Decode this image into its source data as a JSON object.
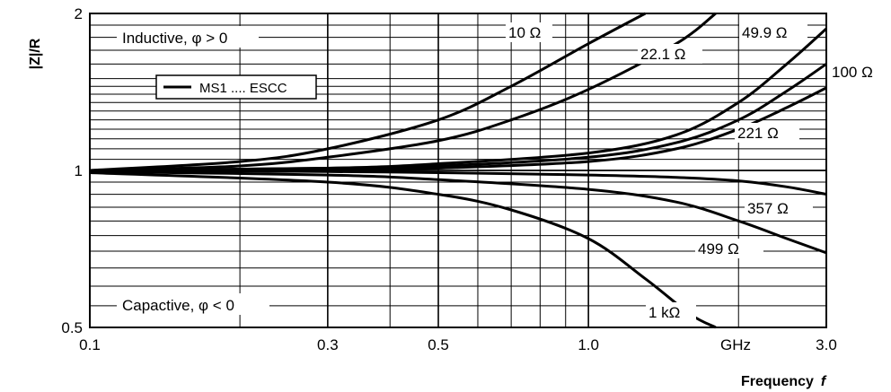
{
  "chart_data": {
    "type": "line",
    "x_scale": "log",
    "y_scale": "log",
    "xlim": [
      0.1,
      3.0
    ],
    "ylim": [
      0.5,
      2
    ],
    "xlabel": "Frequency",
    "xlabel_var": "f",
    "ylabel": "|Z|/R",
    "x_ticks": [
      {
        "value": 0.1,
        "label": "0.1"
      },
      {
        "value": 0.3,
        "label": "0.3"
      },
      {
        "value": 0.5,
        "label": "0.5"
      },
      {
        "value": 1.0,
        "label": "1.0"
      },
      {
        "value": 3.0,
        "label": "3.0"
      }
    ],
    "x_unit_label": "GHz",
    "y_ticks": [
      {
        "value": 0.5,
        "label": "0.5"
      },
      {
        "value": 1,
        "label": "1"
      },
      {
        "value": 2,
        "label": "2"
      }
    ],
    "grid": true,
    "legend": {
      "placement": "upper-left",
      "entries": [
        "MS1 .... ESCC"
      ]
    },
    "annotations": [
      "Inductive, φ > 0",
      "Capactive, φ < 0"
    ],
    "series": [
      {
        "name": "10 Ω",
        "points": [
          [
            0.1,
            1.0
          ],
          [
            0.2,
            1.04
          ],
          [
            0.3,
            1.1
          ],
          [
            0.5,
            1.25
          ],
          [
            0.7,
            1.45
          ],
          [
            1.0,
            1.75
          ],
          [
            1.3,
            2.0
          ]
        ]
      },
      {
        "name": "22.1 Ω",
        "points": [
          [
            0.1,
            1.0
          ],
          [
            0.2,
            1.02
          ],
          [
            0.3,
            1.06
          ],
          [
            0.5,
            1.14
          ],
          [
            0.7,
            1.25
          ],
          [
            1.0,
            1.43
          ],
          [
            1.5,
            1.75
          ],
          [
            1.8,
            2.0
          ]
        ]
      },
      {
        "name": "49.9 Ω",
        "points": [
          [
            0.1,
            1.0
          ],
          [
            0.3,
            1.01
          ],
          [
            0.5,
            1.03
          ],
          [
            1.0,
            1.08
          ],
          [
            1.5,
            1.17
          ],
          [
            2.0,
            1.35
          ],
          [
            2.5,
            1.6
          ],
          [
            3.0,
            1.87
          ]
        ]
      },
      {
        "name": "100 Ω",
        "points": [
          [
            0.1,
            1.0
          ],
          [
            0.3,
            1.01
          ],
          [
            0.5,
            1.02
          ],
          [
            1.0,
            1.06
          ],
          [
            1.5,
            1.13
          ],
          [
            2.0,
            1.25
          ],
          [
            2.5,
            1.42
          ],
          [
            3.0,
            1.6
          ]
        ]
      },
      {
        "name": "221 Ω",
        "points": [
          [
            0.1,
            1.0
          ],
          [
            0.3,
            1.0
          ],
          [
            0.5,
            1.01
          ],
          [
            1.0,
            1.04
          ],
          [
            1.5,
            1.1
          ],
          [
            2.0,
            1.2
          ],
          [
            2.5,
            1.32
          ],
          [
            3.0,
            1.44
          ]
        ]
      },
      {
        "name": "357 Ω",
        "points": [
          [
            0.1,
            1.0
          ],
          [
            0.3,
            0.995
          ],
          [
            0.5,
            0.99
          ],
          [
            1.0,
            0.98
          ],
          [
            1.5,
            0.97
          ],
          [
            2.0,
            0.955
          ],
          [
            2.5,
            0.93
          ],
          [
            3.0,
            0.9
          ]
        ]
      },
      {
        "name": "499 Ω",
        "points": [
          [
            0.1,
            0.995
          ],
          [
            0.3,
            0.98
          ],
          [
            0.5,
            0.96
          ],
          [
            1.0,
            0.92
          ],
          [
            1.5,
            0.87
          ],
          [
            2.0,
            0.8
          ],
          [
            2.5,
            0.74
          ],
          [
            3.0,
            0.695
          ]
        ]
      },
      {
        "name": "1 kΩ",
        "points": [
          [
            0.1,
            0.99
          ],
          [
            0.3,
            0.95
          ],
          [
            0.5,
            0.9
          ],
          [
            0.7,
            0.84
          ],
          [
            1.0,
            0.74
          ],
          [
            1.3,
            0.62
          ],
          [
            1.6,
            0.53
          ],
          [
            1.8,
            0.5
          ]
        ]
      }
    ],
    "line_color": "#000000"
  }
}
